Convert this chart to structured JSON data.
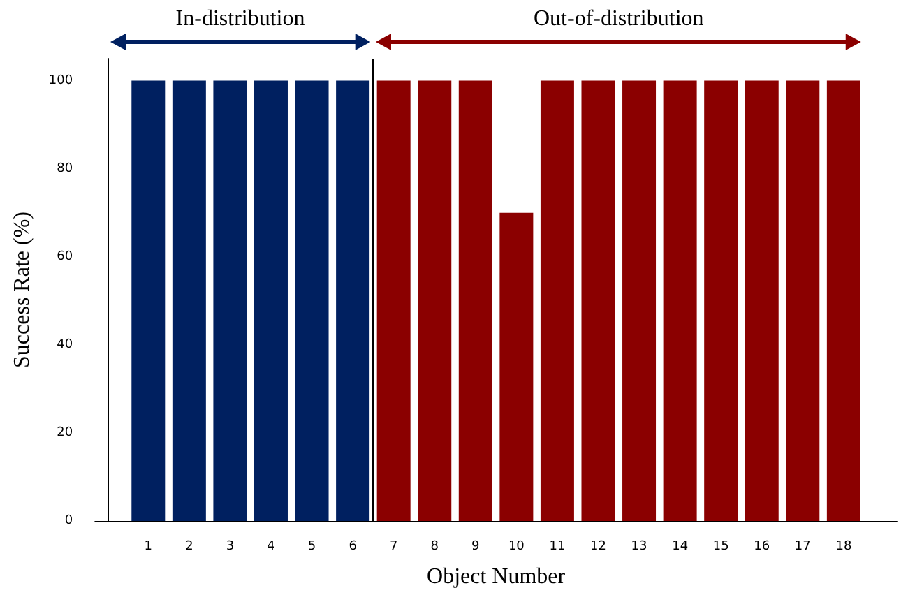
{
  "chart_data": {
    "type": "bar",
    "xlabel": "Object Number",
    "ylabel": "Success Rate (%)",
    "x": [
      1,
      2,
      3,
      4,
      5,
      6,
      7,
      8,
      9,
      10,
      11,
      12,
      13,
      14,
      15,
      16,
      17,
      18
    ],
    "values": [
      100,
      100,
      100,
      100,
      100,
      100,
      100,
      100,
      100,
      70,
      100,
      100,
      100,
      100,
      100,
      100,
      100,
      100
    ],
    "colors": [
      "#002060",
      "#002060",
      "#002060",
      "#002060",
      "#002060",
      "#002060",
      "#8b0000",
      "#8b0000",
      "#8b0000",
      "#8b0000",
      "#8b0000",
      "#8b0000",
      "#8b0000",
      "#8b0000",
      "#8b0000",
      "#8b0000",
      "#8b0000",
      "#8b0000"
    ],
    "xlim": [
      -0.3,
      19.3
    ],
    "xticks": [
      1,
      2,
      3,
      4,
      5,
      6,
      7,
      8,
      9,
      10,
      11,
      12,
      13,
      14,
      15,
      16,
      17,
      18
    ],
    "ylim": [
      0,
      105
    ],
    "yticks": [
      0,
      20,
      40,
      60,
      80,
      100
    ],
    "ref_lines": [
      {
        "axis": "x",
        "value": 6.5,
        "color": "#000000"
      }
    ],
    "annotations": [
      "In-distribution",
      "Out-of-distribution"
    ]
  }
}
